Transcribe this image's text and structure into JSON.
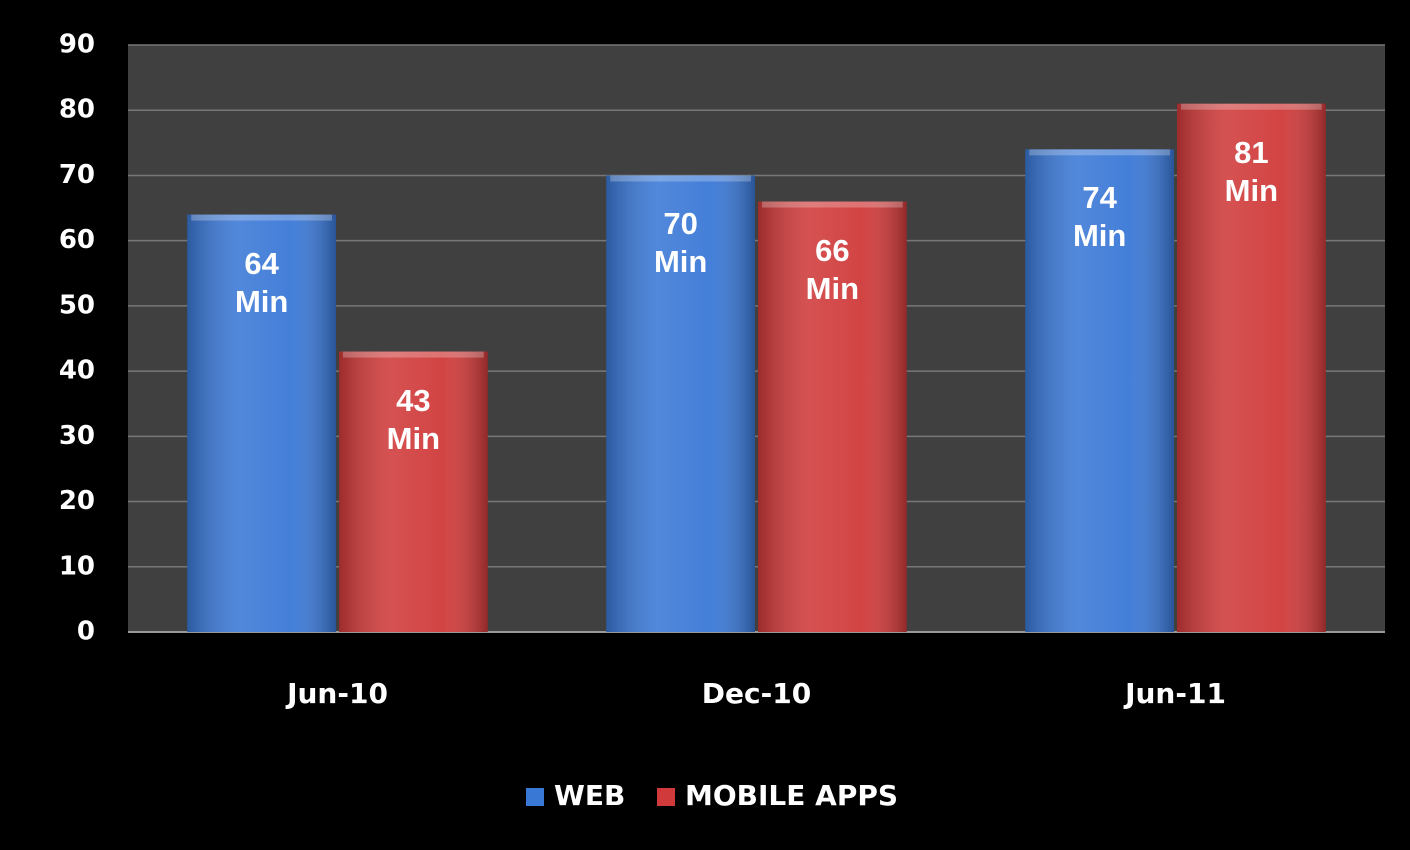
{
  "chart_data": {
    "type": "bar",
    "categories": [
      "Jun-10",
      "Dec-10",
      "Jun-11"
    ],
    "series": [
      {
        "name": "WEB",
        "color": "#3a78d6",
        "values": [
          64,
          70,
          74
        ],
        "value_labels": [
          "64 Min",
          "70 Min",
          "74 Min"
        ]
      },
      {
        "name": "MOBILE APPS",
        "color": "#d03a3a",
        "values": [
          43,
          66,
          81
        ],
        "value_labels": [
          "43 Min",
          "66 Min",
          "81 Min"
        ]
      }
    ],
    "ylim": [
      0,
      90
    ],
    "yticks": [
      0,
      10,
      20,
      30,
      40,
      50,
      60,
      70,
      80,
      90
    ],
    "grid": true,
    "legend": "bottom"
  }
}
